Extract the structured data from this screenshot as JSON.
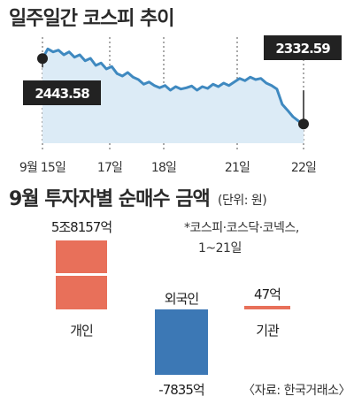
{
  "chart_data": [
    {
      "type": "line",
      "title": "일주일간 코스피 추이",
      "x_tick_labels": [
        "9월 15일",
        "17일",
        "18일",
        "21일",
        "22일"
      ],
      "start_label": "2443.58",
      "end_label": "2332.59",
      "ylim": [
        2300,
        2480
      ],
      "series": [
        {
          "values": [
            2443.58,
            2460,
            2455,
            2458,
            2450,
            2455,
            2446,
            2450,
            2440,
            2444,
            2432,
            2436,
            2426,
            2430,
            2418,
            2414,
            2420,
            2412,
            2408,
            2400,
            2404,
            2398,
            2394,
            2398,
            2390,
            2396,
            2392,
            2394,
            2397,
            2390,
            2396,
            2393,
            2400,
            2396,
            2402,
            2398,
            2404,
            2410,
            2406,
            2412,
            2408,
            2410,
            2402,
            2398,
            2392,
            2366,
            2356,
            2345,
            2338,
            2332.59
          ]
        }
      ],
      "colors": {
        "line": "#3f89c0",
        "area": "#dcebf6",
        "marker": "#222222",
        "label_bg": "#222222"
      }
    },
    {
      "type": "bar",
      "title": "9월 투자자별 순매수 금액",
      "subtitle": "(단위: 원)",
      "note": [
        "*코스피·코스닥·코넥스,",
        "1~21일"
      ],
      "categories": [
        "개인",
        "외국인",
        "기관"
      ],
      "values": [
        58157,
        -7835,
        47
      ],
      "value_labels": [
        "5조8157억",
        "-7835억",
        "47억"
      ],
      "source": "〈자료: 한국거래소〉",
      "colors": {
        "개인": "#e8705a",
        "외국인": "#3c78b5",
        "기관": "#e8705a"
      }
    }
  ]
}
